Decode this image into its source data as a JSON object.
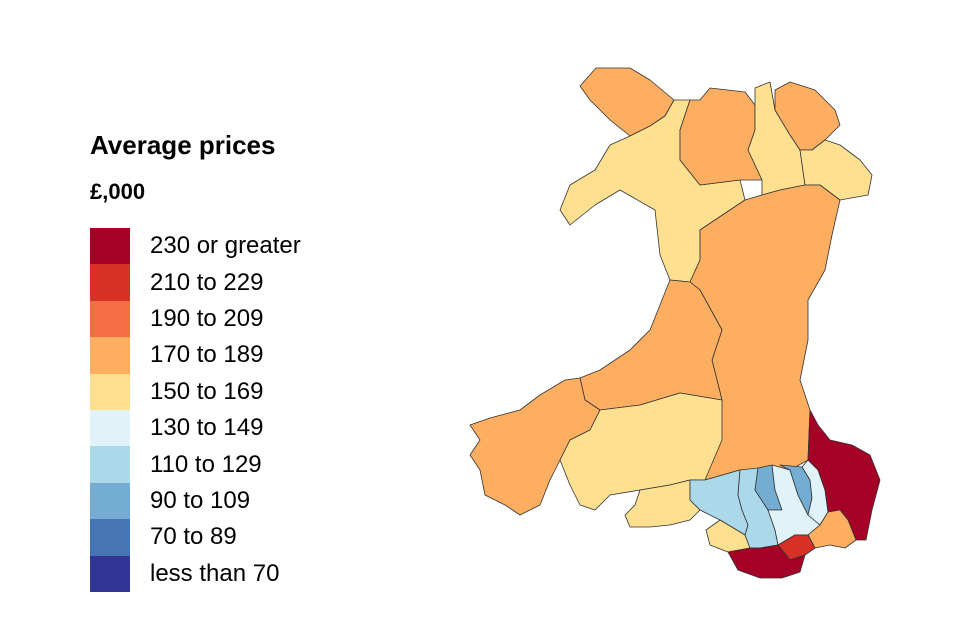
{
  "legend": {
    "title": "Average prices",
    "unit": "£,000",
    "items": [
      {
        "label": "230 or greater",
        "color": "#a50026"
      },
      {
        "label": "210 to 229",
        "color": "#d73027"
      },
      {
        "label": "190 to 209",
        "color": "#f46d43"
      },
      {
        "label": "170 to 189",
        "color": "#fdae61"
      },
      {
        "label": "150 to 169",
        "color": "#fee090"
      },
      {
        "label": "130 to 149",
        "color": "#e0f3f8"
      },
      {
        "label": "110 to 129",
        "color": "#abd9e9"
      },
      {
        "label": "90 to 109",
        "color": "#74add1"
      },
      {
        "label": "70 to 89",
        "color": "#4575b4"
      },
      {
        "label": "less than 70",
        "color": "#313695"
      }
    ]
  },
  "regions": [
    {
      "name": "region-anglesey",
      "band": "170 to 189"
    },
    {
      "name": "region-gwynedd",
      "band": "150 to 169"
    },
    {
      "name": "region-conwy",
      "band": "170 to 189"
    },
    {
      "name": "region-denbighshire",
      "band": "150 to 169"
    },
    {
      "name": "region-flintshire",
      "band": "170 to 189"
    },
    {
      "name": "region-wrexham",
      "band": "150 to 169"
    },
    {
      "name": "region-powys",
      "band": "170 to 189"
    },
    {
      "name": "region-ceredigion",
      "band": "170 to 189"
    },
    {
      "name": "region-pembrokeshire",
      "band": "170 to 189"
    },
    {
      "name": "region-carmarthenshire",
      "band": "150 to 169"
    },
    {
      "name": "region-swansea",
      "band": "150 to 169"
    },
    {
      "name": "region-neath-port-talbot",
      "band": "110 to 129"
    },
    {
      "name": "region-bridgend",
      "band": "150 to 169"
    },
    {
      "name": "region-rhondda-cynon-taf",
      "band": "110 to 129"
    },
    {
      "name": "region-merthyr-tydfil",
      "band": "90 to 109"
    },
    {
      "name": "region-caerphilly",
      "band": "130 to 149"
    },
    {
      "name": "region-blaenau-gwent",
      "band": "90 to 109"
    },
    {
      "name": "region-torfaen",
      "band": "130 to 149"
    },
    {
      "name": "region-monmouthshire",
      "band": "230 or greater"
    },
    {
      "name": "region-newport",
      "band": "170 to 189"
    },
    {
      "name": "region-cardiff",
      "band": "210 to 229"
    },
    {
      "name": "region-vale-of-glamorgan",
      "band": "230 or greater"
    }
  ]
}
